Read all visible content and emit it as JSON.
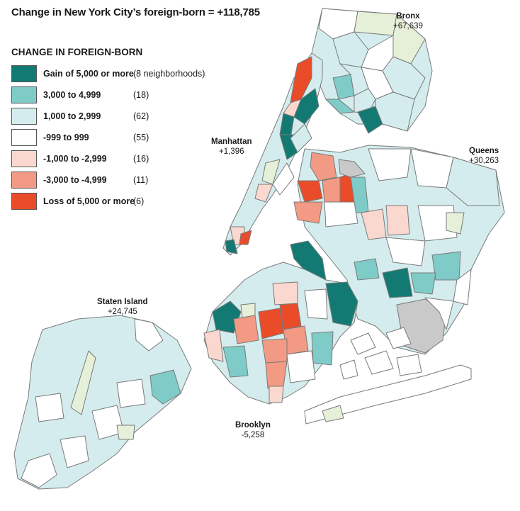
{
  "title": "Change in New York City’s foreign-born = +118,785",
  "legend": {
    "title": "CHANGE IN FOREIGN-BORN",
    "items": [
      {
        "label": "Gain of 5,000 or more",
        "count": "(8 neighborhoods)",
        "color": "#137a73"
      },
      {
        "label": "3,000 to 4,999",
        "count": "(18)",
        "color": "#7fcbc8"
      },
      {
        "label": "1,000 to 2,999",
        "count": "(62)",
        "color": "#d4ecee"
      },
      {
        "label": "-999 to 999",
        "count": "(55)",
        "color": "#ffffff"
      },
      {
        "label": "-1,000 to -2,999",
        "count": "(16)",
        "color": "#fbd8cf"
      },
      {
        "label": "-3,000 to -4,999",
        "count": "(11)",
        "color": "#f29a84"
      },
      {
        "label": "Loss of 5,000 or more",
        "count": "(6)",
        "color": "#ea4c2a"
      }
    ]
  },
  "boroughs": {
    "bronx": {
      "name": "Bronx",
      "value": "+67,639"
    },
    "manhattan": {
      "name": "Manhattan",
      "value": "+1,396"
    },
    "queens": {
      "name": "Queens",
      "value": "+30,263"
    },
    "staten_island": {
      "name": "Staten Island",
      "value": "+24,745"
    },
    "brooklyn": {
      "name": "Brooklyn",
      "value": "-5,258"
    }
  },
  "colors": {
    "no_data": "#c9c9c9",
    "pale_green": "#e6f0d8",
    "border": "#7a7a7a"
  }
}
